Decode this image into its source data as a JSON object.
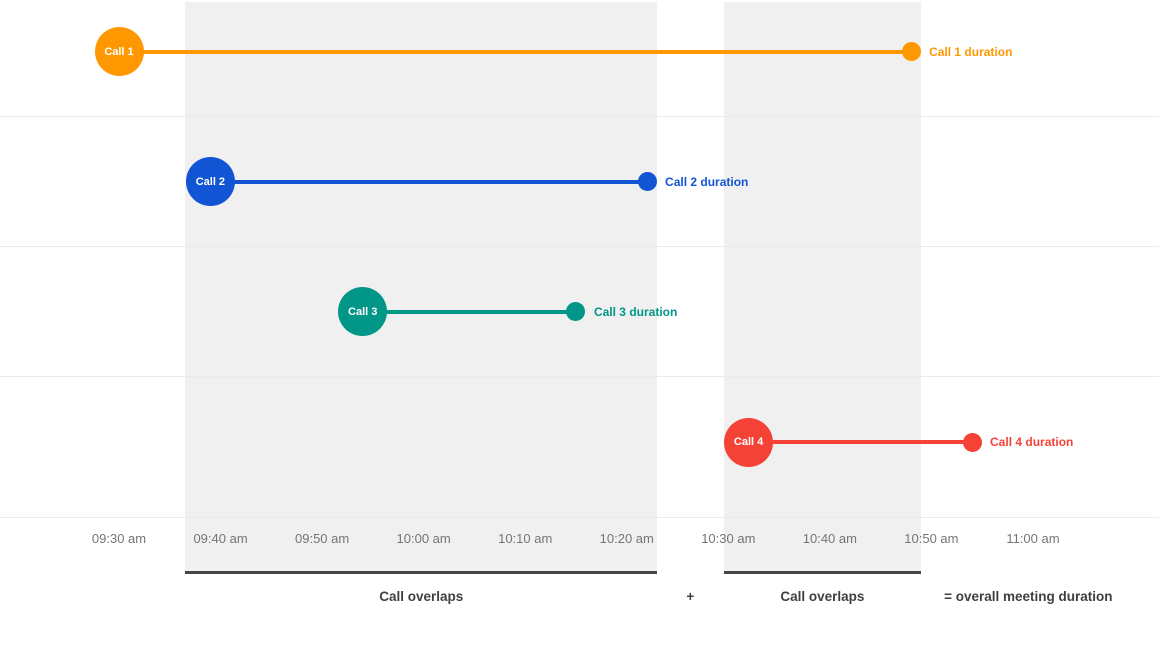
{
  "chart_data": {
    "type": "timeline",
    "title": "",
    "description": "Four call duration timelines with shaded call-overlap periods",
    "x_tick_labels": [
      "09:30 am",
      "09:40 am",
      "09:50 am",
      "10:00 am",
      "10:10 am",
      "10:20 am",
      "10:30 am",
      "10:40 am",
      "10:50 am",
      "11:00 am"
    ],
    "x_axis_range": [
      "09:30 am",
      "11:00 am"
    ],
    "grid": true,
    "legend_position": "none",
    "band_color": "#F0F0F0",
    "series": [
      {
        "name": "Call 1",
        "duration_label": "Call 1 duration",
        "color": "#FF9800",
        "start": "09:30",
        "end": "10:48"
      },
      {
        "name": "Call 2",
        "duration_label": "Call 2 duration",
        "color": "#1155D4",
        "start": "09:39",
        "end": "10:22"
      },
      {
        "name": "Call 3",
        "duration_label": "Call 3 duration",
        "color": "#009688",
        "start": "09:54",
        "end": "10:15"
      },
      {
        "name": "Call 4",
        "duration_label": "Call 4 duration",
        "color": "#F44336",
        "start": "10:32",
        "end": "10:54"
      }
    ],
    "overlap_bands": [
      {
        "start": "09:39",
        "end": "10:22"
      },
      {
        "start": "10:32",
        "end": "10:48"
      }
    ]
  },
  "annotations": {
    "overlap_left": "Call overlaps",
    "plus": "+",
    "overlap_right": "Call overlaps",
    "equals": "= overall meeting duration"
  }
}
